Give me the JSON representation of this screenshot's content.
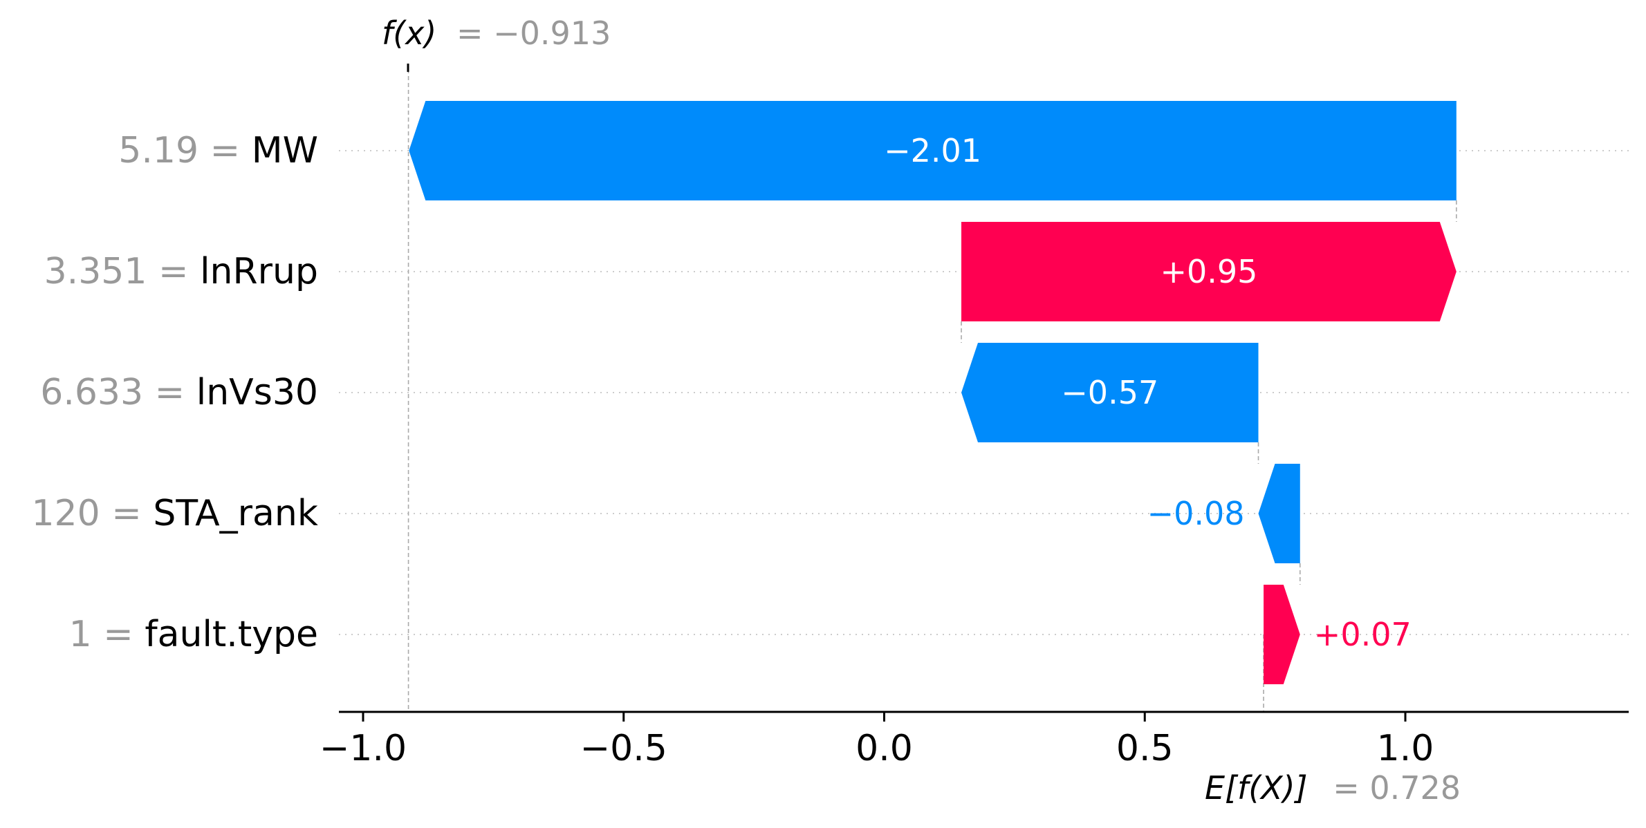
{
  "chart_data": {
    "type": "waterfall",
    "output_label": "f(x)",
    "output_value": "−0.913",
    "expected_label": "E[f(X)]",
    "expected_value": "0.728",
    "base_value": 0.728,
    "final_value": -0.913,
    "features": [
      {
        "value": "5.19",
        "name": "MW",
        "contribution": -2.01,
        "label": "−2.01"
      },
      {
        "value": "3.351",
        "name": "lnRrup",
        "contribution": 0.95,
        "label": "+0.95"
      },
      {
        "value": "6.633",
        "name": "lnVs30",
        "contribution": -0.57,
        "label": "−0.57"
      },
      {
        "value": "120",
        "name": "STA_rank",
        "contribution": -0.08,
        "label": "−0.08"
      },
      {
        "value": "1",
        "name": "fault.type",
        "contribution": 0.07,
        "label": "+0.07"
      }
    ],
    "xlim": [
      -1.09,
      1.42
    ],
    "xticks": [
      -1.0,
      -0.5,
      0.0,
      0.5,
      1.0
    ],
    "xtick_labels": [
      "−1.0",
      "−0.5",
      "0.0",
      "0.5",
      "1.0"
    ],
    "colors": {
      "positive": "#ff0051",
      "negative": "#008bfb",
      "muted": "#999999",
      "axis": "#000000"
    }
  }
}
